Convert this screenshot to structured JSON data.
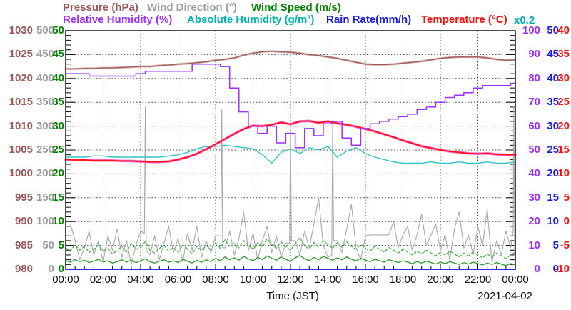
{
  "header": {
    "row1": [
      {
        "label": "Pressure (hPa)",
        "color": "#9c5858"
      },
      {
        "label": "Wind Direction (°)",
        "color": "#9c9c9c"
      },
      {
        "label": "Wind Speed (m/s)",
        "color": "#008000"
      }
    ],
    "row2": [
      {
        "label": "Relative Humidity (%)",
        "color": "#9e30ff"
      },
      {
        "label": "Absolute Humidity (g/m³)",
        "color": "#00b1b1"
      },
      {
        "label": "Rain Rate(mm/h)",
        "color": "#1b1be0"
      },
      {
        "label": "Temperature (°C)",
        "color": "#ff0f0f"
      }
    ]
  },
  "chart_data": {
    "type": "line",
    "xlabel": "Time (JST)",
    "date_label": "2021-04-02",
    "x_tick_labels": [
      "00:00",
      "02:00",
      "04:00",
      "06:00",
      "08:00",
      "10:00",
      "12:00",
      "14:00",
      "16:00",
      "18:00",
      "20:00",
      "22:00",
      "00:00"
    ],
    "x_range_hours": [
      0,
      24
    ],
    "grid": "dotted",
    "right_axis_note": {
      "label": "x0.2",
      "color": "#00b1b1",
      "meaning": "Absolute Humidity axis = Relative Humidity axis × 0.2"
    },
    "axes": {
      "left_columns": [
        {
          "name": "pressure-hpa",
          "color": "#9c5858",
          "ticks": [
            1030,
            1025,
            1020,
            1015,
            1010,
            1005,
            1000,
            995,
            990,
            985,
            980
          ]
        },
        {
          "name": "wind-direction-deg",
          "color": "#9c9c9c",
          "ticks": [
            500,
            450,
            400,
            350,
            300,
            250,
            200,
            150,
            100,
            50,
            0
          ]
        },
        {
          "name": "wind-speed-ms",
          "color": "#008000",
          "ticks": [
            50,
            45,
            40,
            35,
            30,
            25,
            20,
            15,
            10,
            5,
            0
          ]
        }
      ],
      "right_columns": [
        {
          "name": "relative-humidity-pct",
          "color": "#9e30ff",
          "ticks": [
            100,
            90,
            80,
            70,
            60,
            50,
            40,
            30,
            20,
            10,
            0
          ]
        },
        {
          "name": "rain-rate-mmh",
          "color": "#1b1be0",
          "ticks": [
            50,
            45,
            40,
            35,
            30,
            25,
            20,
            15,
            10,
            5,
            0
          ]
        },
        {
          "name": "temperature-c",
          "color": "#ff0f0f",
          "ticks": [
            40,
            35,
            30,
            25,
            20,
            15,
            10,
            5,
            0,
            -5,
            -10
          ]
        }
      ]
    },
    "series": [
      {
        "name": "Wind Direction",
        "unit": "°",
        "color": "#a8a8a8",
        "width": 1.1,
        "range": [
          0,
          500
        ],
        "points": [
          [
            0,
            95
          ],
          [
            0.25,
            95
          ],
          [
            0.5,
            60
          ],
          [
            0.75,
            20
          ],
          [
            1,
            45
          ],
          [
            1.25,
            80
          ],
          [
            1.5,
            30
          ],
          [
            1.75,
            60
          ],
          [
            2,
            15
          ],
          [
            2.25,
            70
          ],
          [
            2.5,
            40
          ],
          [
            2.75,
            85
          ],
          [
            3,
            25
          ],
          [
            3.25,
            60
          ],
          [
            3.5,
            10
          ],
          [
            3.75,
            50
          ],
          [
            4,
            80
          ],
          [
            4.2,
            75
          ],
          [
            4.25,
            340
          ],
          [
            4.3,
            40
          ],
          [
            4.5,
            30
          ],
          [
            4.75,
            70
          ],
          [
            5,
            20
          ],
          [
            5.25,
            55
          ],
          [
            5.5,
            90
          ],
          [
            5.75,
            35
          ],
          [
            6,
            65
          ],
          [
            6.25,
            15
          ],
          [
            6.5,
            75
          ],
          [
            6.75,
            40
          ],
          [
            7,
            90
          ],
          [
            7.25,
            25
          ],
          [
            7.5,
            60
          ],
          [
            7.75,
            35
          ],
          [
            8,
            70
          ],
          [
            8.28,
            70
          ],
          [
            8.33,
            335
          ],
          [
            8.38,
            45
          ],
          [
            8.5,
            45
          ],
          [
            8.75,
            80
          ],
          [
            9,
            30
          ],
          [
            9.25,
            65
          ],
          [
            9.5,
            120
          ],
          [
            9.75,
            40
          ],
          [
            10,
            75
          ],
          [
            10.25,
            20
          ],
          [
            10.5,
            60
          ],
          [
            10.75,
            90
          ],
          [
            11,
            35
          ],
          [
            11.25,
            70
          ],
          [
            11.5,
            25
          ],
          [
            11.75,
            55
          ],
          [
            11.95,
            55
          ],
          [
            12,
            293
          ],
          [
            12.05,
            60
          ],
          [
            12.25,
            60
          ],
          [
            12.5,
            30
          ],
          [
            12.75,
            80
          ],
          [
            13,
            45
          ],
          [
            13.25,
            95
          ],
          [
            13.5,
            150
          ],
          [
            13.75,
            50
          ],
          [
            14,
            25
          ],
          [
            14.2,
            30
          ],
          [
            14.25,
            313
          ],
          [
            14.3,
            60
          ],
          [
            14.5,
            60
          ],
          [
            14.75,
            35
          ],
          [
            15,
            85
          ],
          [
            15.25,
            136
          ],
          [
            15.5,
            45
          ],
          [
            15.75,
            20
          ],
          [
            16,
            70
          ],
          [
            16.25,
            72
          ],
          [
            16.5,
            72
          ],
          [
            16.75,
            72
          ],
          [
            17,
            72
          ],
          [
            17.25,
            72
          ],
          [
            17.5,
            100
          ],
          [
            17.75,
            45
          ],
          [
            18,
            72
          ],
          [
            18.25,
            90
          ],
          [
            18.5,
            40
          ],
          [
            18.75,
            72
          ],
          [
            19,
            115
          ],
          [
            19.25,
            50
          ],
          [
            19.5,
            72
          ],
          [
            19.75,
            95
          ],
          [
            20,
            40
          ],
          [
            20.25,
            72
          ],
          [
            20.5,
            20
          ],
          [
            20.75,
            85
          ],
          [
            21,
            120
          ],
          [
            21.25,
            45
          ],
          [
            21.5,
            72
          ],
          [
            21.75,
            30
          ],
          [
            22,
            90
          ],
          [
            22.25,
            50
          ],
          [
            22.5,
            125
          ],
          [
            22.75,
            15
          ],
          [
            23,
            60
          ],
          [
            23.25,
            30
          ],
          [
            23.5,
            80
          ],
          [
            23.75,
            45
          ],
          [
            23.88,
            80
          ],
          [
            23.92,
            340
          ],
          [
            23.96,
            30
          ],
          [
            24,
            200
          ]
        ]
      },
      {
        "name": "Wind Speed (max)",
        "unit": "m/s",
        "color": "#3fae3f",
        "width": 1.2,
        "dash": "4 3",
        "range": [
          0,
          50
        ],
        "x_start": 0,
        "x_step": 0.25,
        "values": [
          4.5,
          3.8,
          5.2,
          4.0,
          4.8,
          3.5,
          4.2,
          5.0,
          3.8,
          4.5,
          3.2,
          4.0,
          4.8,
          3.6,
          5.5,
          4.2,
          4.6,
          5.8,
          4.0,
          3.4,
          4.4,
          5.0,
          3.8,
          4.6,
          3.5,
          5.2,
          4.3,
          3.2,
          4.8,
          3.9,
          5.0,
          4.1,
          5.6,
          4.4,
          6.2,
          4.8,
          5.4,
          4.5,
          6.0,
          5.0,
          4.2,
          5.6,
          4.6,
          6.4,
          5.2,
          4.4,
          5.8,
          4.8,
          4.0,
          5.4,
          6.6,
          5.0,
          4.2,
          5.6,
          4.6,
          6.0,
          5.2,
          4.4,
          5.6,
          4.6,
          5.8,
          4.8,
          4.2,
          5.2,
          4.4,
          3.8,
          4.8,
          4.2,
          3.6,
          4.6,
          4.0,
          3.4,
          4.2,
          3.6,
          3.0,
          3.8,
          3.2,
          4.0,
          3.4,
          2.8,
          3.6,
          3.0,
          3.8,
          3.2,
          2.6,
          3.4,
          2.8,
          3.6,
          3.0,
          2.4,
          3.2,
          2.6,
          3.4,
          2.8,
          2.2,
          3.0,
          3.6
        ]
      },
      {
        "name": "Wind Speed",
        "unit": "m/s",
        "color": "#2d9b2d",
        "width": 1.3,
        "range": [
          0,
          50
        ],
        "x_start": 0,
        "x_step": 0.25,
        "values": [
          1.8,
          1.5,
          2.0,
          1.6,
          1.9,
          1.4,
          1.7,
          2.1,
          1.5,
          1.8,
          1.3,
          1.6,
          2.0,
          1.5,
          1.9,
          1.4,
          1.8,
          2.2,
          1.6,
          1.3,
          1.7,
          2.0,
          1.5,
          1.8,
          1.4,
          2.1,
          1.7,
          1.3,
          1.9,
          1.5,
          2.0,
          1.6,
          2.3,
          1.8,
          2.6,
          2.0,
          2.4,
          1.9,
          2.7,
          2.2,
          1.8,
          2.5,
          2.0,
          2.8,
          2.3,
          1.9,
          2.6,
          2.1,
          1.7,
          2.4,
          2.9,
          2.2,
          1.8,
          2.5,
          2.0,
          2.7,
          2.3,
          1.9,
          2.4,
          2.0,
          2.6,
          2.1,
          1.8,
          2.3,
          1.9,
          1.6,
          2.1,
          1.8,
          1.5,
          2.0,
          1.7,
          1.4,
          1.8,
          1.5,
          1.2,
          1.6,
          1.3,
          1.7,
          1.4,
          1.1,
          1.5,
          1.2,
          1.6,
          1.3,
          1.0,
          1.4,
          1.1,
          1.5,
          1.2,
          0.9,
          1.3,
          1.0,
          1.4,
          1.1,
          0.8,
          1.2,
          1.0
        ]
      },
      {
        "name": "Pressure",
        "unit": "hPa",
        "color": "#9c5858",
        "shadow": "#d0a8a8",
        "width": 1.1,
        "range": [
          980,
          1030
        ],
        "x_start": 0,
        "x_step": 0.5,
        "values": [
          1022.0,
          1022.0,
          1022.1,
          1022.1,
          1022.2,
          1022.2,
          1022.3,
          1022.4,
          1022.5,
          1022.5,
          1022.7,
          1022.8,
          1023.0,
          1023.1,
          1023.3,
          1023.5,
          1023.8,
          1024.0,
          1024.3,
          1024.9,
          1025.3,
          1025.6,
          1025.7,
          1025.6,
          1025.5,
          1025.3,
          1025.0,
          1024.8,
          1024.5,
          1024.2,
          1023.8,
          1023.4,
          1023.0,
          1022.9,
          1022.9,
          1023.0,
          1023.2,
          1023.4,
          1023.6,
          1023.9,
          1024.2,
          1024.4,
          1024.5,
          1024.5,
          1024.5,
          1024.3,
          1024.0,
          1023.8,
          1023.9
        ]
      },
      {
        "name": "Absolute Humidity",
        "unit": "g/m³",
        "color": "#33c3c6",
        "width": 1.4,
        "range": [
          0,
          20
        ],
        "x_start": 0,
        "x_step": 0.5,
        "values": [
          9.4,
          9.4,
          9.4,
          9.5,
          9.5,
          9.4,
          9.4,
          9.4,
          9.4,
          9.4,
          9.4,
          9.5,
          9.6,
          9.8,
          10.1,
          10.3,
          10.3,
          10.4,
          10.3,
          10.2,
          10.1,
          9.6,
          8.9,
          9.8,
          10.1,
          9.7,
          10.2,
          10.0,
          10.3,
          9.4,
          9.9,
          10.2,
          9.7,
          9.4,
          9.2,
          9.0,
          8.9,
          8.9,
          8.9,
          9.0,
          8.9,
          8.9,
          9.0,
          8.9,
          8.9,
          9.0,
          8.9,
          8.9,
          9.0
        ]
      },
      {
        "name": "Temperature",
        "unit": "°C",
        "color": "#ff0f0f",
        "shadow": "#ff70d2",
        "width": 1.7,
        "range": [
          -10,
          40
        ],
        "x_start": 0,
        "x_step": 0.5,
        "values": [
          13.0,
          12.9,
          12.9,
          12.8,
          12.8,
          12.8,
          12.7,
          12.7,
          12.6,
          12.5,
          12.5,
          12.6,
          13.0,
          13.5,
          14.2,
          15.2,
          16.2,
          17.3,
          18.4,
          19.4,
          20.1,
          20.0,
          20.3,
          20.8,
          20.4,
          21.0,
          21.1,
          20.7,
          21.0,
          20.6,
          20.3,
          19.9,
          19.4,
          18.9,
          18.3,
          17.7,
          17.0,
          16.4,
          15.8,
          15.4,
          15.0,
          14.7,
          14.5,
          14.3,
          14.2,
          14.3,
          14.1,
          14.0,
          14.0
        ]
      },
      {
        "name": "Relative Humidity",
        "unit": "%",
        "color": "#9e30ff",
        "width": 1.5,
        "step": true,
        "range": [
          0,
          100
        ],
        "x_start": 0,
        "x_step": 0.5,
        "values": [
          82,
          82,
          82,
          81,
          81,
          81,
          81,
          81,
          82,
          83,
          83,
          83,
          83,
          83,
          86,
          86,
          86,
          85,
          76,
          66,
          60,
          57,
          60,
          53,
          57,
          51,
          59,
          56,
          61,
          62,
          55,
          52,
          59,
          61,
          62,
          63,
          64,
          65,
          67,
          68,
          70,
          72,
          73,
          74,
          76,
          77,
          77,
          77,
          78
        ]
      },
      {
        "name": "Rain Rate",
        "unit": "mm/h",
        "color": "#1b1be0",
        "width": 1.8,
        "range": [
          0,
          50
        ],
        "on_top": true,
        "x_start": 0,
        "x_step": 12,
        "values": [
          0,
          0,
          0
        ]
      }
    ]
  }
}
